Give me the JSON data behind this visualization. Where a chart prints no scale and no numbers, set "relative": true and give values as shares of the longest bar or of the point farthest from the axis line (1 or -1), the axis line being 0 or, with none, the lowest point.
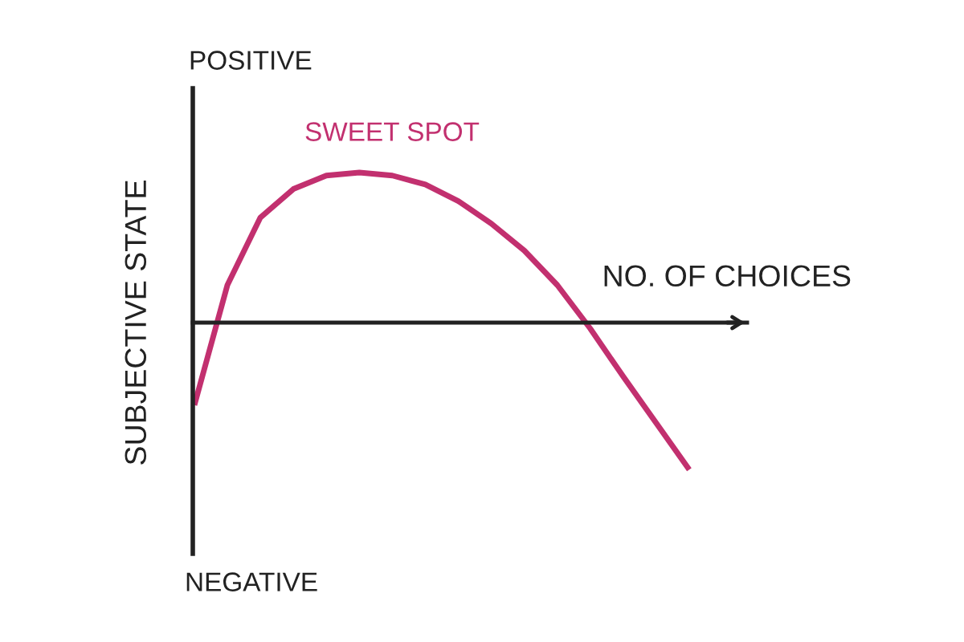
{
  "chart_data": {
    "type": "line",
    "relative": true,
    "xlabel": "NO. OF CHOICES",
    "ylabel": "SUBJECTIVE STATE",
    "annotations": [
      "POSITIVE",
      "SWEET SPOT",
      "NEGATIVE"
    ],
    "categories": [
      null,
      null,
      null,
      null,
      null,
      null,
      null,
      null,
      null,
      null,
      null,
      null,
      null,
      null,
      null,
      null
    ],
    "series": [
      {
        "color": "#c2306f",
        "values": [
          -0.55,
          0.25,
          0.7,
          0.89,
          0.98,
          1.0,
          0.98,
          0.92,
          0.81,
          0.66,
          0.48,
          0.25,
          -0.04,
          -0.36,
          -0.67,
          -0.98
        ]
      }
    ],
    "grid": false,
    "legend": false
  }
}
